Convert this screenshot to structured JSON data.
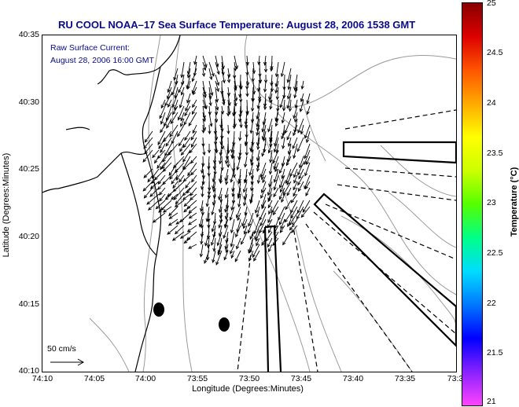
{
  "title": "RU COOL  NOAA–17  Sea Surface Temperature:  August 28, 2006 1538 GMT",
  "annotation": {
    "line1": "Raw Surface Current:",
    "line2": "August 28, 2006 16:00 GMT"
  },
  "axes": {
    "xlabel": "Longitude (Degrees:Minutes)",
    "ylabel": "Latitude (Degrees:Minutes)",
    "xticks": [
      "74:10",
      "74:05",
      "74:00",
      "73:55",
      "73:50",
      "73:45",
      "73:40",
      "73:35",
      "73:3"
    ],
    "yticks": [
      "40:35",
      "40:30",
      "40:25",
      "40:20",
      "40:15",
      "40:10"
    ]
  },
  "scale": {
    "label": "50 cm/s"
  },
  "colorbar": {
    "label": "Temperature (°C)",
    "ticks": [
      "25",
      "24.5",
      "24",
      "23.5",
      "23",
      "22.5",
      "22",
      "21.5",
      "21"
    ],
    "min": 21,
    "max": 25,
    "colors": [
      "#ff44ff",
      "#8822ff",
      "#0000ff",
      "#0077ff",
      "#00ddff",
      "#00ff88",
      "#55ff00",
      "#ccff00",
      "#ffff00",
      "#ffaa00",
      "#ff5500",
      "#dd0000",
      "#880000"
    ]
  }
}
